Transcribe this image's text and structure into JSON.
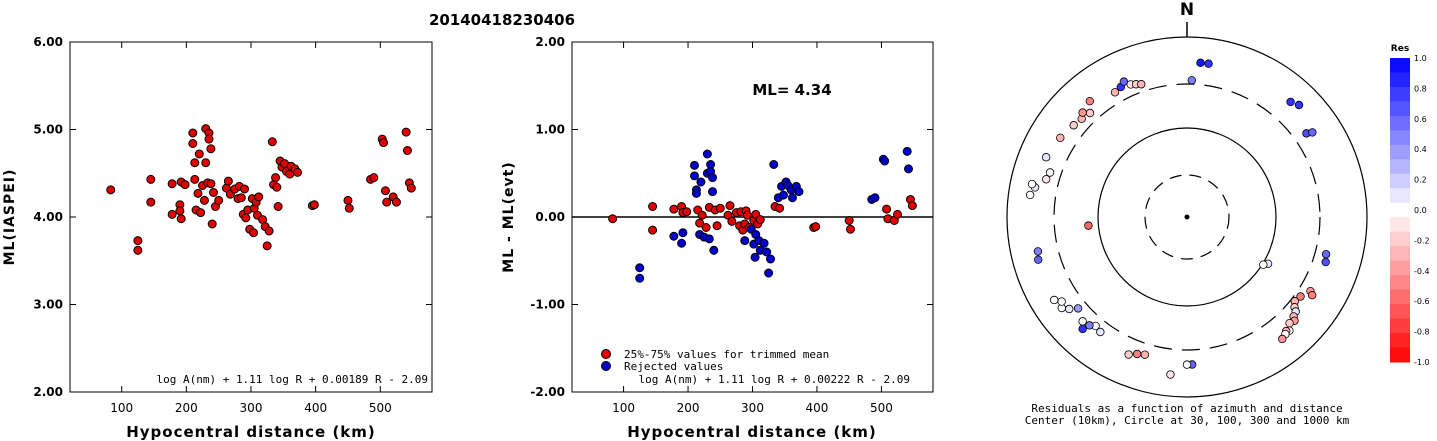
{
  "page_title": "20140418230406",
  "chart_data": [
    {
      "type": "scatter",
      "xlabel": "Hypocentral distance (km)",
      "ylabel": "ML(IASPEI)",
      "xlim": [
        20,
        580
      ],
      "ylim": [
        2.0,
        6.0
      ],
      "xticks": [
        "100",
        "200",
        "300",
        "400",
        "500"
      ],
      "xtick_values": [
        100,
        200,
        300,
        400,
        500
      ],
      "yticks": [
        "2.00",
        "3.00",
        "4.00",
        "5.00",
        "6.00"
      ],
      "ytick_values": [
        2,
        3,
        4,
        5,
        6
      ],
      "formula": "log A(nm) + 1.11 log R + 0.00189 R - 2.09",
      "series": [
        {
          "color": "#e00000",
          "points": [
            [
              83,
              4.31
            ],
            [
              125,
              3.73
            ],
            [
              125,
              3.62
            ],
            [
              145,
              4.43
            ],
            [
              145,
              4.17
            ],
            [
              178,
              4.38
            ],
            [
              178,
              4.03
            ],
            [
              190,
              4.14
            ],
            [
              190,
              4.07
            ],
            [
              192,
              4.4
            ],
            [
              192,
              3.98
            ],
            [
              198,
              4.37
            ],
            [
              210,
              4.96
            ],
            [
              210,
              4.84
            ],
            [
              213,
              4.62
            ],
            [
              213,
              4.43
            ],
            [
              215,
              4.08
            ],
            [
              218,
              4.27
            ],
            [
              220,
              4.72
            ],
            [
              222,
              4.05
            ],
            [
              225,
              4.36
            ],
            [
              228,
              4.19
            ],
            [
              230,
              5.01
            ],
            [
              230,
              4.62
            ],
            [
              233,
              4.39
            ],
            [
              235,
              4.96
            ],
            [
              235,
              4.89
            ],
            [
              238,
              4.78
            ],
            [
              238,
              4.38
            ],
            [
              240,
              3.92
            ],
            [
              242,
              4.28
            ],
            [
              245,
              4.12
            ],
            [
              250,
              4.19
            ],
            [
              262,
              4.33
            ],
            [
              265,
              4.41
            ],
            [
              268,
              4.26
            ],
            [
              275,
              4.32
            ],
            [
              280,
              4.21
            ],
            [
              282,
              4.35
            ],
            [
              285,
              4.22
            ],
            [
              288,
              4.03
            ],
            [
              290,
              4.32
            ],
            [
              292,
              3.99
            ],
            [
              295,
              4.08
            ],
            [
              298,
              3.86
            ],
            [
              302,
              4.21
            ],
            [
              304,
              3.82
            ],
            [
              305,
              4.1
            ],
            [
              308,
              4.17
            ],
            [
              310,
              4.02
            ],
            [
              312,
              4.23
            ],
            [
              318,
              3.97
            ],
            [
              322,
              3.89
            ],
            [
              325,
              3.67
            ],
            [
              328,
              3.84
            ],
            [
              333,
              4.86
            ],
            [
              335,
              4.37
            ],
            [
              338,
              4.45
            ],
            [
              340,
              4.34
            ],
            [
              342,
              4.12
            ],
            [
              345,
              4.64
            ],
            [
              348,
              4.57
            ],
            [
              352,
              4.61
            ],
            [
              355,
              4.52
            ],
            [
              360,
              4.49
            ],
            [
              362,
              4.58
            ],
            [
              368,
              4.55
            ],
            [
              372,
              4.51
            ],
            [
              395,
              4.13
            ],
            [
              398,
              4.14
            ],
            [
              450,
              4.19
            ],
            [
              452,
              4.1
            ],
            [
              485,
              4.43
            ],
            [
              490,
              4.45
            ],
            [
              503,
              4.89
            ],
            [
              505,
              4.85
            ],
            [
              508,
              4.3
            ],
            [
              510,
              4.17
            ],
            [
              520,
              4.23
            ],
            [
              525,
              4.17
            ],
            [
              540,
              4.97
            ],
            [
              542,
              4.76
            ],
            [
              545,
              4.39
            ],
            [
              548,
              4.33
            ]
          ]
        }
      ]
    },
    {
      "type": "scatter",
      "title": "ML= 4.34",
      "xlabel": "Hypocentral distance (km)",
      "ylabel": "ML - ML(evt)",
      "xlim": [
        20,
        580
      ],
      "ylim": [
        -2.0,
        2.0
      ],
      "xticks": [
        "100",
        "200",
        "300",
        "400",
        "500"
      ],
      "xtick_values": [
        100,
        200,
        300,
        400,
        500
      ],
      "yticks": [
        "-2.00",
        "-1.00",
        "0.00",
        "1.00",
        "2.00"
      ],
      "ytick_values": [
        -2,
        -1,
        0,
        1,
        2
      ],
      "formula": "log A(nm) + 1.11 log R + 0.00222 R - 2.09",
      "legend": [
        {
          "label": "25%-75% values for trimmed mean",
          "color": "#e00000"
        },
        {
          "label": "Rejected values",
          "color": "#0000cc"
        }
      ],
      "series": [
        {
          "name": "25%-75% values for trimmed mean",
          "color": "#e00000",
          "points": [
            [
              83,
              -0.02
            ],
            [
              145,
              0.12
            ],
            [
              145,
              -0.15
            ],
            [
              178,
              0.09
            ],
            [
              190,
              0.12
            ],
            [
              192,
              0.05
            ],
            [
              198,
              0.06
            ],
            [
              215,
              0.08
            ],
            [
              218,
              -0.07
            ],
            [
              222,
              0.02
            ],
            [
              228,
              -0.12
            ],
            [
              233,
              0.11
            ],
            [
              242,
              0.08
            ],
            [
              245,
              -0.1
            ],
            [
              250,
              0.1
            ],
            [
              262,
              0.02
            ],
            [
              265,
              0.13
            ],
            [
              268,
              -0.05
            ],
            [
              275,
              0.05
            ],
            [
              280,
              -0.1
            ],
            [
              282,
              0.06
            ],
            [
              285,
              -0.15
            ],
            [
              288,
              -0.08
            ],
            [
              290,
              0.07
            ],
            [
              292,
              0.02
            ],
            [
              295,
              -0.12
            ],
            [
              302,
              -0.04
            ],
            [
              305,
              0.03
            ],
            [
              308,
              -0.08
            ],
            [
              312,
              -0.03
            ],
            [
              335,
              0.12
            ],
            [
              342,
              0.1
            ],
            [
              395,
              -0.12
            ],
            [
              398,
              -0.11
            ],
            [
              450,
              -0.04
            ],
            [
              452,
              -0.14
            ],
            [
              508,
              0.09
            ],
            [
              510,
              -0.02
            ],
            [
              520,
              -0.04
            ],
            [
              525,
              0.03
            ],
            [
              545,
              0.2
            ],
            [
              548,
              0.13
            ]
          ]
        },
        {
          "name": "Rejected values",
          "color": "#0000cc",
          "points": [
            [
              125,
              -0.58
            ],
            [
              125,
              -0.7
            ],
            [
              178,
              -0.22
            ],
            [
              190,
              -0.3
            ],
            [
              192,
              -0.18
            ],
            [
              210,
              0.59
            ],
            [
              210,
              0.47
            ],
            [
              213,
              0.31
            ],
            [
              213,
              0.27
            ],
            [
              218,
              -0.2
            ],
            [
              220,
              0.4
            ],
            [
              225,
              -0.23
            ],
            [
              230,
              0.72
            ],
            [
              230,
              0.5
            ],
            [
              233,
              -0.25
            ],
            [
              235,
              0.6
            ],
            [
              235,
              0.52
            ],
            [
              238,
              0.45
            ],
            [
              238,
              0.29
            ],
            [
              240,
              -0.38
            ],
            [
              288,
              -0.27
            ],
            [
              298,
              -0.14
            ],
            [
              302,
              -0.31
            ],
            [
              304,
              -0.46
            ],
            [
              305,
              -0.2
            ],
            [
              310,
              -0.27
            ],
            [
              312,
              -0.38
            ],
            [
              318,
              -0.3
            ],
            [
              322,
              -0.4
            ],
            [
              325,
              -0.64
            ],
            [
              328,
              -0.48
            ],
            [
              333,
              0.6
            ],
            [
              340,
              0.22
            ],
            [
              345,
              0.35
            ],
            [
              348,
              0.25
            ],
            [
              352,
              0.4
            ],
            [
              355,
              0.36
            ],
            [
              360,
              0.31
            ],
            [
              362,
              0.22
            ],
            [
              368,
              0.35
            ],
            [
              372,
              0.29
            ],
            [
              485,
              0.2
            ],
            [
              490,
              0.22
            ],
            [
              503,
              0.66
            ],
            [
              505,
              0.64
            ],
            [
              540,
              0.75
            ],
            [
              542,
              0.55
            ]
          ]
        }
      ]
    }
  ],
  "polar": {
    "north_label": "N",
    "caption_line1": "Residuals as a function of azimuth and distance",
    "caption_line2": "Center (10km), Circle at 30, 100, 300 and 1000 km",
    "stations": [
      {
        "az": 5,
        "d": 0.86,
        "res": 0.9
      },
      {
        "az": 8,
        "d": 0.86,
        "res": 0.8
      },
      {
        "az": 2,
        "d": 0.76,
        "res": 0.5
      },
      {
        "az": 42,
        "d": 0.86,
        "res": 0.8
      },
      {
        "az": 45,
        "d": 0.88,
        "res": 0.8
      },
      {
        "az": 55,
        "d": 0.81,
        "res": 0.7
      },
      {
        "az": 56,
        "d": 0.84,
        "res": 0.6
      },
      {
        "az": 105,
        "d": 0.8,
        "res": 0.6
      },
      {
        "az": 108,
        "d": 0.81,
        "res": 0.7
      },
      {
        "az": 121,
        "d": 0.8,
        "res": -0.4
      },
      {
        "az": 122,
        "d": 0.82,
        "res": -0.5
      },
      {
        "az": 125,
        "d": 0.77,
        "res": -0.5
      },
      {
        "az": 128,
        "d": 0.76,
        "res": -0.3
      },
      {
        "az": 130,
        "d": 0.78,
        "res": -0.2
      },
      {
        "az": 131,
        "d": 0.8,
        "res": 0.1
      },
      {
        "az": 133,
        "d": 0.81,
        "res": -0.3
      },
      {
        "az": 134,
        "d": 0.83,
        "res": -0.4
      },
      {
        "az": 136,
        "d": 0.82,
        "res": -0.2
      },
      {
        "az": 138,
        "d": 0.85,
        "res": 0.0
      },
      {
        "az": 139,
        "d": 0.84,
        "res": -0.3
      },
      {
        "az": 140,
        "d": 0.85,
        "res": 0.0
      },
      {
        "az": 142,
        "d": 0.86,
        "res": -0.4
      },
      {
        "az": 120,
        "d": 0.52,
        "res": 0.1
      },
      {
        "az": 122,
        "d": 0.5,
        "res": 0.0
      },
      {
        "az": 178,
        "d": 0.82,
        "res": 0.6
      },
      {
        "az": 180,
        "d": 0.82,
        "res": 0.0
      },
      {
        "az": 186,
        "d": 0.88,
        "res": -0.1
      },
      {
        "az": 197,
        "d": 0.8,
        "res": -0.3
      },
      {
        "az": 200,
        "d": 0.81,
        "res": -0.5
      },
      {
        "az": 203,
        "d": 0.83,
        "res": -0.2
      },
      {
        "az": 217,
        "d": 0.8,
        "res": 0.1
      },
      {
        "az": 220,
        "d": 0.79,
        "res": 0.0
      },
      {
        "az": 222,
        "d": 0.81,
        "res": 0.5
      },
      {
        "az": 223,
        "d": 0.85,
        "res": 0.8
      },
      {
        "az": 225,
        "d": 0.82,
        "res": 0.0
      },
      {
        "az": 230,
        "d": 0.79,
        "res": 0.4
      },
      {
        "az": 232,
        "d": 0.83,
        "res": 0.1
      },
      {
        "az": 234,
        "d": 0.86,
        "res": 0.0
      },
      {
        "az": 236,
        "d": 0.84,
        "res": 0.0
      },
      {
        "az": 238,
        "d": 0.87,
        "res": 0.0
      },
      {
        "az": 254,
        "d": 0.86,
        "res": 0.6
      },
      {
        "az": 257,
        "d": 0.85,
        "res": 0.5
      },
      {
        "az": 265,
        "d": 0.55,
        "res": -0.6
      },
      {
        "az": 278,
        "d": 0.88,
        "res": 0.0
      },
      {
        "az": 281,
        "d": 0.86,
        "res": 0.1
      },
      {
        "az": 282,
        "d": 0.88,
        "res": 0.0
      },
      {
        "az": 285,
        "d": 0.81,
        "res": -0.1
      },
      {
        "az": 288,
        "d": 0.8,
        "res": 0.0
      },
      {
        "az": 293,
        "d": 0.85,
        "res": 0.1
      },
      {
        "az": 302,
        "d": 0.83,
        "res": -0.3
      },
      {
        "az": 309,
        "d": 0.81,
        "res": -0.2
      },
      {
        "az": 313,
        "d": 0.8,
        "res": -0.3
      },
      {
        "az": 315,
        "d": 0.82,
        "res": -0.4
      },
      {
        "az": 317,
        "d": 0.79,
        "res": -0.2
      },
      {
        "az": 320,
        "d": 0.84,
        "res": -0.5
      },
      {
        "az": 330,
        "d": 0.8,
        "res": -0.3
      },
      {
        "az": 333,
        "d": 0.81,
        "res": 0.8
      },
      {
        "az": 335,
        "d": 0.83,
        "res": 0.6
      },
      {
        "az": 337,
        "d": 0.8,
        "res": -0.1
      },
      {
        "az": 339,
        "d": 0.79,
        "res": -0.2
      },
      {
        "az": 341,
        "d": 0.78,
        "res": -0.3
      }
    ]
  },
  "colorbar": {
    "title": "Res",
    "ticks": [
      "1.0",
      "0.8",
      "0.6",
      "0.4",
      "0.2",
      "0.0",
      "-0.2",
      "-0.4",
      "-0.6",
      "-0.8",
      "-1.0"
    ],
    "tick_values": [
      1.0,
      0.8,
      0.6,
      0.4,
      0.2,
      0.0,
      -0.2,
      -0.4,
      -0.6,
      -0.8,
      -1.0
    ]
  }
}
